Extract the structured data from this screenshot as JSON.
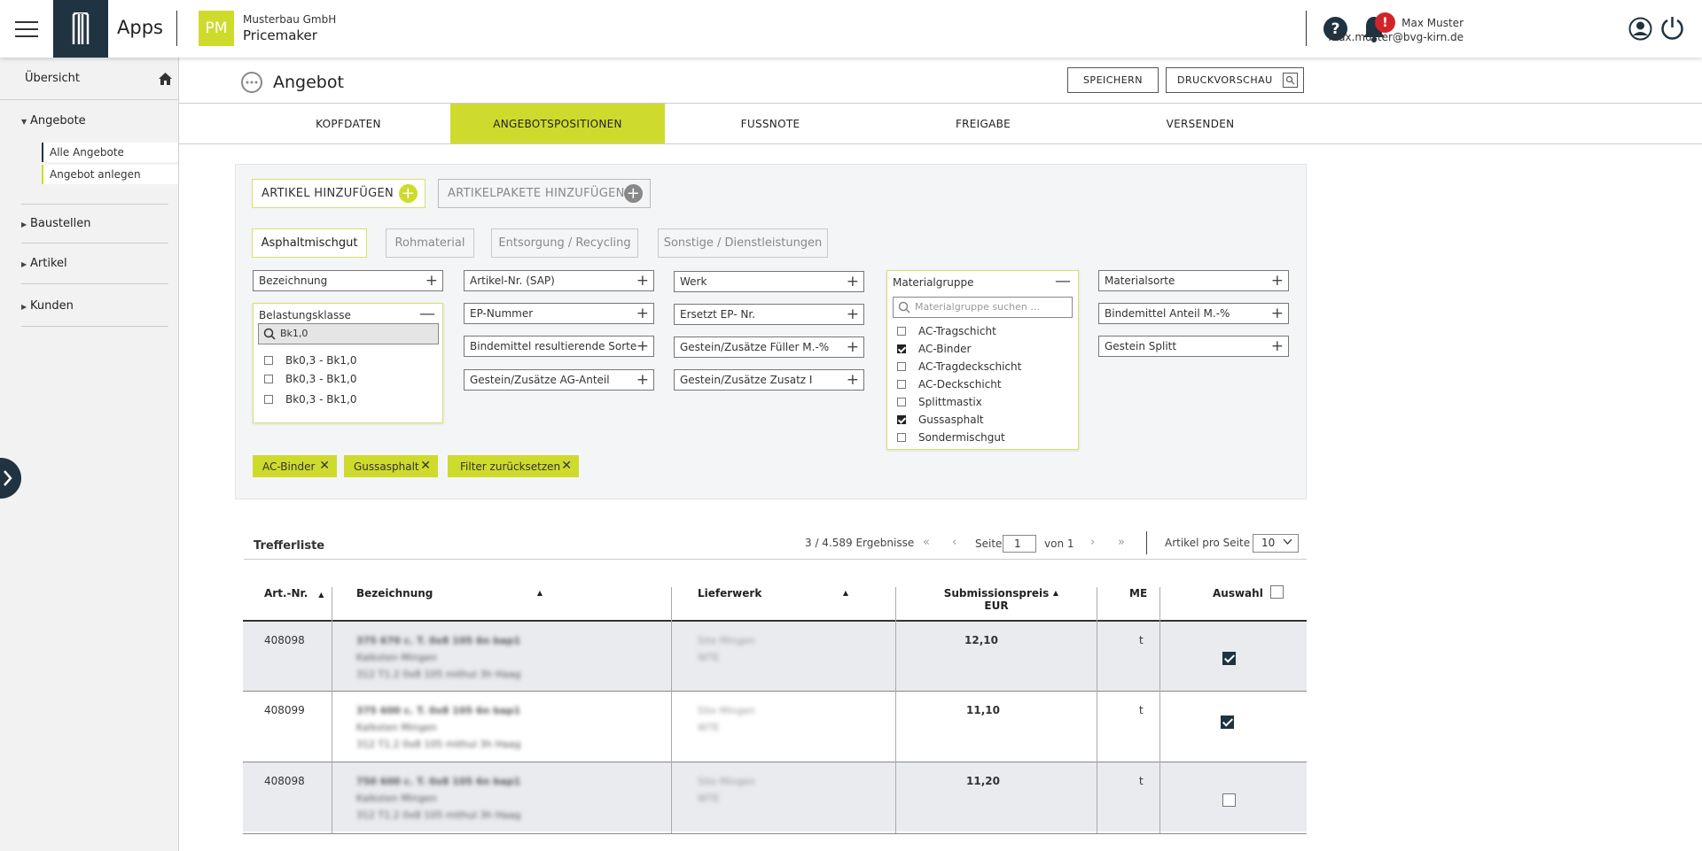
{
  "header": {
    "apps_label": "Apps",
    "app_badge": "PM",
    "company": "Musterbau GmbH",
    "product": "Pricemaker",
    "notification_badge": "!",
    "user_name": "Max Muster",
    "user_email": "max.muster@bvg-kirn.de",
    "icons": [
      "menu-icon",
      "app-logo-icon",
      "help-icon",
      "bell-icon",
      "user-icon",
      "power-icon"
    ]
  },
  "sidebar": {
    "overview": "Übersicht",
    "groups": [
      {
        "label": "Angebote",
        "expanded": true,
        "items": [
          "Alle Angebote",
          "Angebot anlegen"
        ]
      },
      {
        "label": "Baustellen",
        "expanded": false
      },
      {
        "label": "Artikel",
        "expanded": false
      },
      {
        "label": "Kunden",
        "expanded": false
      }
    ]
  },
  "page": {
    "title": "Angebot",
    "save_label": "SPEICHERN",
    "preview_label": "DRUCKVORSCHAU"
  },
  "tabs": [
    {
      "label": "KOPFDATEN",
      "active": false
    },
    {
      "label": "ANGEBOTSPOSITIONEN",
      "active": true
    },
    {
      "label": "FUSSNOTE",
      "active": false
    },
    {
      "label": "FREIGABE",
      "active": false
    },
    {
      "label": "VERSENDEN",
      "active": false
    }
  ],
  "filters": {
    "add_article": "ARTIKEL HINZUFÜGEN",
    "add_package": "ARTIKELPAKETE HINZUFÜGEN",
    "categories": [
      "Asphaltmischgut",
      "Rohmaterial",
      "Entsorgung / Recycling",
      "Sonstige / Dienstleistungen"
    ],
    "active_category": "Asphaltmischgut",
    "fields": {
      "bezeichnung": "Bezeichnung",
      "artikel_nr": "Artikel-Nr. (SAP)",
      "ep_nummer": "EP-Nummer",
      "bindemittel_sorte": "Bindemittel resultierende Sorte",
      "gestein_ag": "Gestein/Zusätze AG-Anteil",
      "werk": "Werk",
      "ersetzt_ep": "Ersetzt EP- Nr.",
      "gestein_fueller": "Gestein/Zusätze Füller M.-%",
      "gestein_zusatz": "Gestein/Zusätze Zusatz I",
      "materialsorte": "Materialsorte",
      "bindemittel_anteil": "Bindemittel Anteil M.-%",
      "gestein_splitt": "Gestein Splitt"
    },
    "belastungsklasse": {
      "title": "Belastungsklasse",
      "search_value": "Bk1,0",
      "options": [
        {
          "label": "Bk0,3 - Bk1,0",
          "checked": false
        },
        {
          "label": "Bk0,3 - Bk1,0",
          "checked": false
        },
        {
          "label": "Bk0,3 - Bk1,0",
          "checked": false
        }
      ]
    },
    "materialgruppe": {
      "title": "Materialgruppe",
      "search_placeholder": "Materialgruppe suchen ...",
      "options": [
        {
          "label": "AC-Tragschicht",
          "checked": false
        },
        {
          "label": "AC-Binder",
          "checked": true
        },
        {
          "label": "AC-Tragdeckschicht",
          "checked": false
        },
        {
          "label": "AC-Deckschicht",
          "checked": false
        },
        {
          "label": "Splittmastix",
          "checked": false
        },
        {
          "label": "Gussasphalt",
          "checked": true
        },
        {
          "label": "Sondermischgut",
          "checked": false
        }
      ]
    },
    "chips": [
      "AC-Binder",
      "Gussasphalt",
      "Filter zurücksetzen"
    ]
  },
  "results": {
    "title": "Trefferliste",
    "count": "3 / 4.589 Ergebnisse",
    "page_label": "Seite",
    "page_value": "1",
    "of_label": "von 1",
    "per_page_label": "Artikel pro Seite",
    "per_page_value": "10",
    "columns": {
      "art_nr": "Art.-Nr.",
      "bezeichnung": "Bezeichnung",
      "lieferwerk": "Lieferwerk",
      "preis_line1": "Submissionspreis",
      "preis_line2": "EUR",
      "me": "ME",
      "auswahl": "Auswahl"
    },
    "rows": [
      {
        "art_nr": "408098",
        "desc1": "375 670 c. T. 0x8 105 6n bap1",
        "desc2": "Kalksten Mingen",
        "desc3": "312 T1.2 0x8 105 mithul 3h Haag",
        "werk1": "Site Mingen",
        "werk2": "WTE",
        "preis": "12,10",
        "me": "t",
        "selected": true
      },
      {
        "art_nr": "408099",
        "desc1": "375 600 c. T. 0x8 105 6n bap1",
        "desc2": "Kalksten Mingen",
        "desc3": "312 T1.2 0x8 105 mithul 3h Haag",
        "werk1": "Site Mingen",
        "werk2": "WTE",
        "preis": "11,10",
        "me": "t",
        "selected": true
      },
      {
        "art_nr": "408098",
        "desc1": "750 600 c. T. 0x8 105 6n bap1",
        "desc2": "Kalksten Mingen",
        "desc3": "312 T1.2 0x8 105 mithul 3h Haag",
        "werk1": "Site Mingen",
        "werk2": "WTE",
        "preis": "11,20",
        "me": "t",
        "selected": false
      }
    ]
  },
  "colors": {
    "accent": "#cfdb2c",
    "dark": "#1f3340",
    "alert": "#d3232a"
  }
}
